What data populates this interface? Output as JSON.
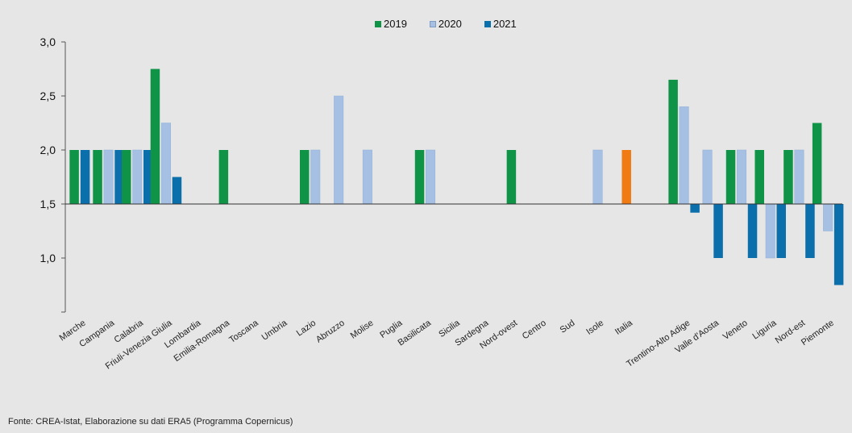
{
  "chart_data": {
    "type": "bar",
    "series": [
      {
        "name": "2019",
        "color": "#0f9346",
        "values": [
          2.0,
          2.0,
          2.0,
          2.75,
          null,
          2.0,
          null,
          null,
          2.0,
          null,
          null,
          null,
          2.0,
          null,
          null,
          2.0,
          null,
          null,
          null,
          null,
          null,
          2.65,
          null,
          2.0,
          2.0,
          2.0,
          2.25
        ]
      },
      {
        "name": "2020",
        "color": "#a6c0e3",
        "values": [
          null,
          2.0,
          2.0,
          2.25,
          null,
          null,
          null,
          null,
          2.0,
          2.5,
          2.0,
          null,
          2.0,
          null,
          null,
          null,
          null,
          null,
          2.0,
          null,
          null,
          2.4,
          2.0,
          2.0,
          1.0,
          2.0,
          1.25
        ]
      },
      {
        "name": "2021",
        "color": "#0a6fab",
        "values": [
          2.0,
          2.0,
          2.0,
          1.75,
          null,
          null,
          null,
          null,
          null,
          null,
          null,
          null,
          null,
          null,
          null,
          null,
          null,
          null,
          null,
          null,
          null,
          1.42,
          1.0,
          1.0,
          1.0,
          1.0,
          0.75
        ]
      }
    ],
    "categories": [
      "Marche",
      "Campania",
      "Calabria",
      "Friuli-Venezia Giulia",
      "Lombardia",
      "Emilia-Romagna",
      "Toscana",
      "Umbria",
      "Lazio",
      "Abruzzo",
      "Molise",
      "Puglia",
      "Basilicata",
      "Sicilia",
      "Sardegna",
      "Nord-ovest",
      "Centro",
      "Sud",
      "Isole",
      "Italia",
      "",
      "Trentino-Alto Adige",
      "Valle d'Aosta",
      "Veneto",
      "Liguria",
      "Nord-est",
      "Piemonte"
    ],
    "italia": {
      "value": 2.0,
      "color": "#f07b12"
    },
    "baseline": 1.5,
    "ylim": [
      0.5,
      3.0
    ],
    "yticks": [
      "1,0",
      "1,5",
      "2,0",
      "2,5",
      "3,0"
    ],
    "ytick_values": [
      1.0,
      1.5,
      2.0,
      2.5,
      3.0
    ],
    "legend_position": "top-center",
    "source": "Fonte: CREA-Istat, Elaborazione su dati ERA5 (Programma Copernicus)"
  }
}
